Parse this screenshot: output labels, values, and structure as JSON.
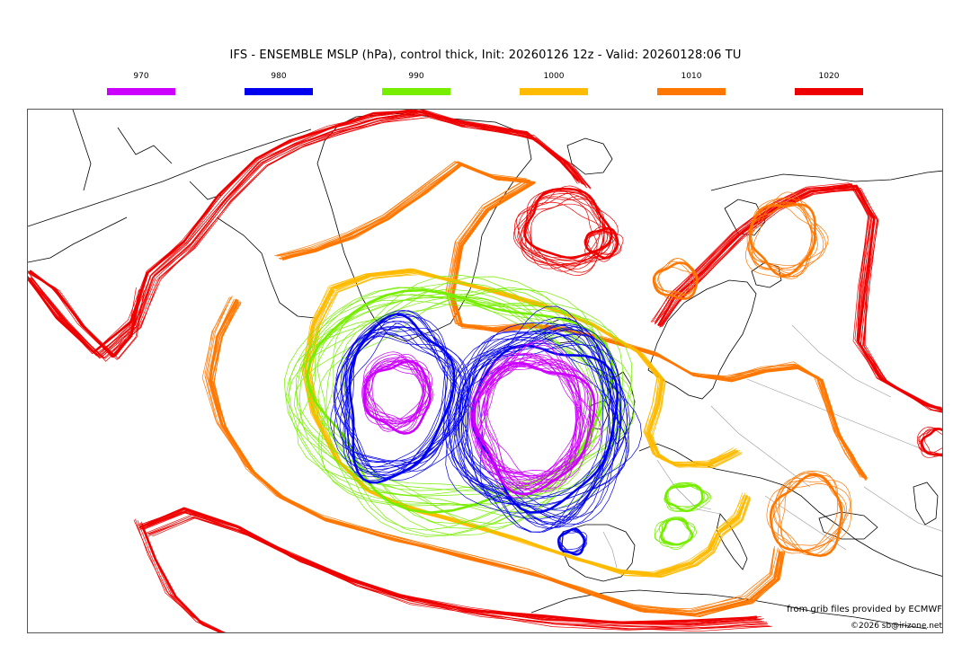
{
  "title": "IFS - ENSEMBLE MSLP (hPa), control thick, Init: 20260126 12z - Valid: 20260128:06 TU",
  "legend": [
    {
      "label": "970",
      "color": "#cc00ff"
    },
    {
      "label": "980",
      "color": "#0000ee"
    },
    {
      "label": "990",
      "color": "#77ee00"
    },
    {
      "label": "1000",
      "color": "#ffbb00"
    },
    {
      "label": "1010",
      "color": "#ff7700"
    },
    {
      "label": "1020",
      "color": "#ee0000"
    }
  ],
  "credits": {
    "source": "from grib files provided by ECMWF",
    "copyright": "©2026 sb@irizone.net"
  },
  "map": {
    "coastline_color": "#000000",
    "border_color": "#999999",
    "features": [
      {
        "name": "low-west",
        "level": "970"
      },
      {
        "name": "low-main",
        "level": "970"
      }
    ]
  }
}
